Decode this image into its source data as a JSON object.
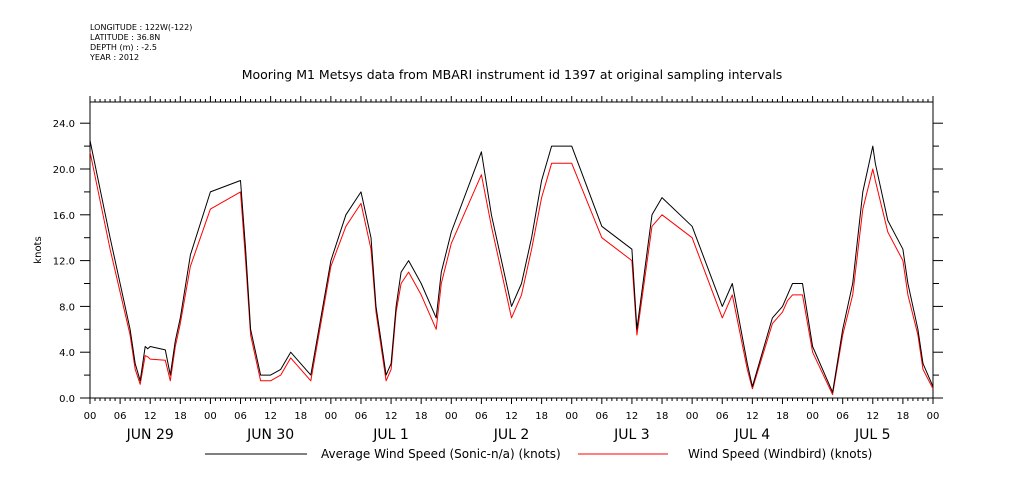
{
  "meta": {
    "longitude": "LONGITUDE : 122W(-122)",
    "latitude": "LATITUDE : 36.8N",
    "depth": "DEPTH (m) : -2.5",
    "year": "YEAR : 2012"
  },
  "chart_data": {
    "type": "line",
    "title": "Mooring M1 Metsys data from MBARI instrument id 1397 at original sampling intervals",
    "ylabel": "knots",
    "xlabel": "",
    "ylim": [
      0,
      25.0
    ],
    "yticks": [
      "0.0",
      "4.0",
      "8.0",
      "12.0",
      "16.0",
      "20.0",
      "24.0"
    ],
    "x_hours_labels": [
      "00",
      "06",
      "12",
      "18",
      "00",
      "06",
      "12",
      "18",
      "00",
      "06",
      "12",
      "18",
      "00",
      "06",
      "12",
      "18",
      "00",
      "06",
      "12",
      "18",
      "00",
      "06",
      "12",
      "18",
      "00",
      "06",
      "12",
      "18",
      "00"
    ],
    "days": [
      "JUN 29",
      "JUN 30",
      "JUL  1",
      "JUL  2",
      "JUL  3",
      "JUL  4",
      "JUL  5"
    ],
    "xlim_hours": [
      0,
      168
    ],
    "x_hours": [
      0,
      4,
      8,
      9,
      10,
      11,
      11.5,
      12,
      15,
      16,
      17,
      18,
      20,
      24,
      30,
      31,
      32,
      33,
      34,
      36,
      38,
      40,
      44,
      48,
      51,
      54,
      56,
      57,
      59,
      60,
      61,
      62,
      63.5,
      66,
      69,
      70,
      72,
      78,
      80,
      82,
      84,
      86,
      88,
      90,
      92,
      96,
      102,
      108,
      109,
      112,
      114,
      120,
      126,
      128,
      131,
      132,
      136,
      138,
      139,
      140,
      142,
      144,
      148,
      150,
      152,
      154,
      156,
      156.5,
      159,
      162,
      163,
      165,
      166,
      168
    ],
    "series": [
      {
        "name": "Average Wind Speed (Sonic-n/a) (knots)",
        "color": "#000000",
        "values": [
          22.5,
          14,
          6,
          3,
          1.5,
          4.5,
          4.3,
          4.5,
          4.2,
          2,
          5,
          7,
          12.5,
          18,
          19,
          13,
          6,
          4,
          2,
          2,
          2.5,
          4,
          2,
          12,
          16,
          18,
          14,
          8,
          2,
          3,
          8,
          11,
          12,
          10,
          7,
          11,
          14.5,
          21.5,
          16,
          12,
          8,
          10,
          14,
          19,
          22,
          22,
          15,
          13,
          6,
          16,
          17.5,
          15,
          8,
          10,
          3,
          1,
          7,
          8,
          9,
          10,
          10,
          4.5,
          0.5,
          6,
          10,
          18,
          22,
          20.5,
          15.5,
          13,
          10,
          6,
          3,
          1
        ]
      },
      {
        "name": "Wind Speed (Windbird) (knots)",
        "color": "#ff0000",
        "values": [
          21.5,
          13,
          5.5,
          2.5,
          1.2,
          3.7,
          3.6,
          3.4,
          3.3,
          1.5,
          4.5,
          6.5,
          11.5,
          16.5,
          18,
          12,
          5.5,
          3.5,
          1.5,
          1.5,
          2,
          3.5,
          1.5,
          11.5,
          15,
          17,
          13,
          7.5,
          1.5,
          2.5,
          7.5,
          10,
          11,
          9,
          6,
          10,
          13.5,
          19.5,
          15,
          11,
          7,
          9,
          13,
          17.5,
          20.5,
          20.5,
          14,
          12,
          5.5,
          15,
          16,
          14,
          7,
          9,
          2.5,
          0.8,
          6.5,
          7.5,
          8.5,
          9,
          9,
          4,
          0.3,
          5.5,
          9,
          16.5,
          20,
          19,
          14.5,
          12,
          9,
          5.5,
          2.5,
          0.8
        ]
      }
    ],
    "legend_position": "bottom",
    "grid": false
  }
}
